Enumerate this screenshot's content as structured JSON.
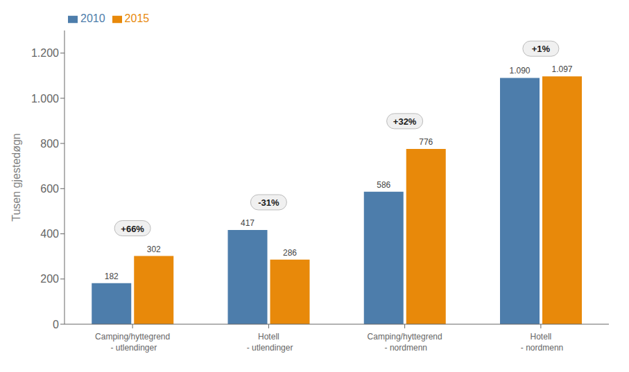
{
  "chart_data": {
    "type": "bar",
    "categories": [
      "Camping/hyttegrend\n - utlendinger",
      "Hotell\n - utlendinger",
      "Camping/hyttegrend\n - nordmenn",
      "Hotell\n - nordmenn"
    ],
    "series": [
      {
        "name": "2010",
        "color": "#4d7dab",
        "values": [
          182,
          417,
          586,
          1090
        ],
        "value_labels": [
          "182",
          "417",
          "586",
          "1.090"
        ]
      },
      {
        "name": "2015",
        "color": "#e8890a",
        "values": [
          302,
          286,
          776,
          1097
        ],
        "value_labels": [
          "302",
          "286",
          "776",
          "1.097"
        ]
      }
    ],
    "ylabel": "Tusen gjestedøgn",
    "ylim": [
      0,
      1300
    ],
    "yticks": [
      0,
      200,
      400,
      600,
      800,
      {
        "value": 1000,
        "label": "1.000"
      },
      {
        "value": 1200,
        "label": "1.200"
      }
    ],
    "annotations": [
      "+66%",
      "-31%",
      "+32%",
      "+1%"
    ],
    "data_labels": true,
    "legend": "upper left",
    "grid": false
  }
}
